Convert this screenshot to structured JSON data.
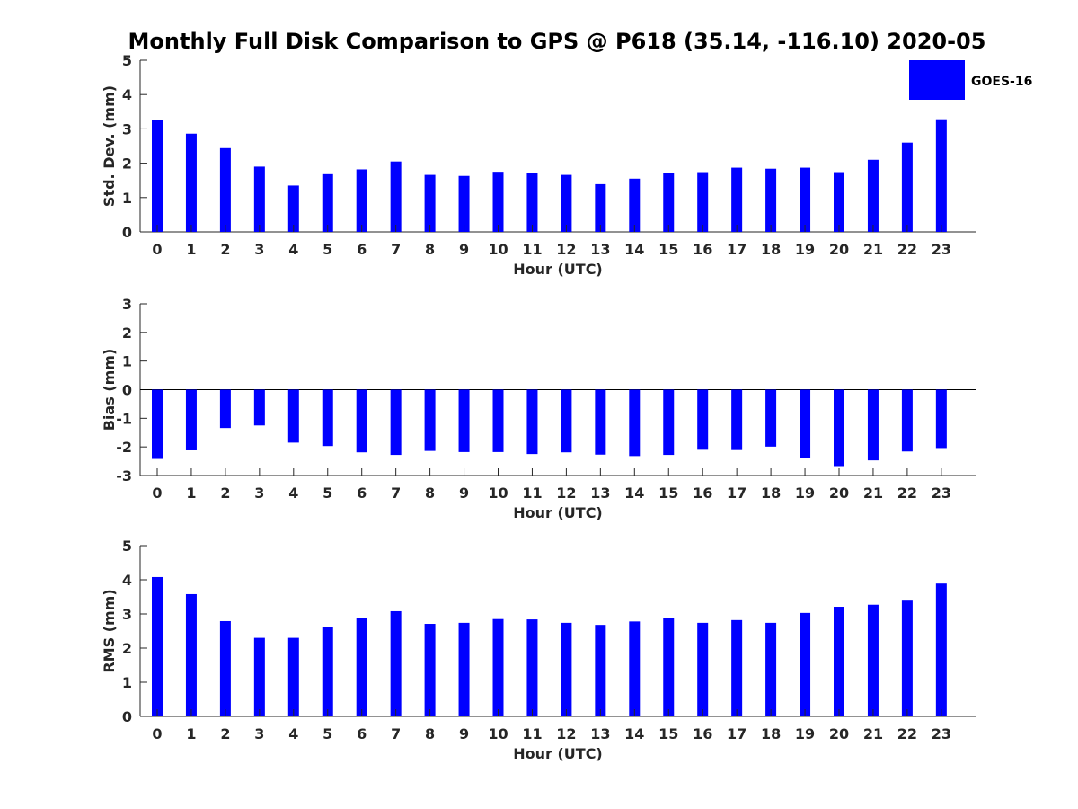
{
  "figure": {
    "title": "Monthly Full Disk Comparison to GPS @ P618 (35.14, -116.10) 2020-05",
    "legend": {
      "label": "GOES-16",
      "color": "#0000ff"
    }
  },
  "chart_data": [
    {
      "type": "bar",
      "title": "Monthly Full Disk Comparison to GPS @ P618 (35.14, -116.10) 2020-05",
      "xlabel": "Hour (UTC)",
      "ylabel": "Std. Dev. (mm)",
      "ylim": [
        0,
        5
      ],
      "yticks": [
        "0",
        "1",
        "2",
        "3",
        "4",
        "5"
      ],
      "categories": [
        "0",
        "1",
        "2",
        "3",
        "4",
        "5",
        "6",
        "7",
        "8",
        "9",
        "10",
        "11",
        "12",
        "13",
        "14",
        "15",
        "16",
        "17",
        "18",
        "19",
        "20",
        "21",
        "22",
        "23"
      ],
      "series": [
        {
          "name": "GOES-16",
          "color": "#0000ff",
          "values": [
            3.25,
            2.86,
            2.44,
            1.9,
            1.35,
            1.68,
            1.82,
            2.05,
            1.66,
            1.63,
            1.75,
            1.71,
            1.66,
            1.39,
            1.55,
            1.72,
            1.74,
            1.87,
            1.84,
            1.87,
            1.74,
            2.1,
            2.6,
            3.28
          ]
        }
      ]
    },
    {
      "type": "bar",
      "xlabel": "Hour (UTC)",
      "ylabel": "Bias (mm)",
      "ylim": [
        -3,
        3
      ],
      "yticks": [
        "-3",
        "-2",
        "-1",
        "0",
        "1",
        "2",
        "3"
      ],
      "zero_line": true,
      "categories": [
        "0",
        "1",
        "2",
        "3",
        "4",
        "5",
        "6",
        "7",
        "8",
        "9",
        "10",
        "11",
        "12",
        "13",
        "14",
        "15",
        "16",
        "17",
        "18",
        "19",
        "20",
        "21",
        "22",
        "23"
      ],
      "series": [
        {
          "name": "GOES-16",
          "color": "#0000ff",
          "values": [
            -2.42,
            -2.12,
            -1.34,
            -1.25,
            -1.85,
            -1.97,
            -2.19,
            -2.28,
            -2.14,
            -2.18,
            -2.18,
            -2.25,
            -2.19,
            -2.27,
            -2.32,
            -2.28,
            -2.1,
            -2.11,
            -1.99,
            -2.39,
            -2.67,
            -2.47,
            -2.16,
            -2.04
          ]
        }
      ]
    },
    {
      "type": "bar",
      "xlabel": "Hour (UTC)",
      "ylabel": "RMS (mm)",
      "ylim": [
        0,
        5
      ],
      "yticks": [
        "0",
        "1",
        "2",
        "3",
        "4",
        "5"
      ],
      "categories": [
        "0",
        "1",
        "2",
        "3",
        "4",
        "5",
        "6",
        "7",
        "8",
        "9",
        "10",
        "11",
        "12",
        "13",
        "14",
        "15",
        "16",
        "17",
        "18",
        "19",
        "20",
        "21",
        "22",
        "23"
      ],
      "series": [
        {
          "name": "GOES-16",
          "color": "#0000ff",
          "values": [
            4.08,
            3.58,
            2.79,
            2.3,
            2.3,
            2.62,
            2.87,
            3.08,
            2.71,
            2.74,
            2.85,
            2.84,
            2.74,
            2.68,
            2.78,
            2.87,
            2.74,
            2.82,
            2.74,
            3.03,
            3.21,
            3.27,
            3.39,
            3.89
          ]
        }
      ]
    }
  ]
}
